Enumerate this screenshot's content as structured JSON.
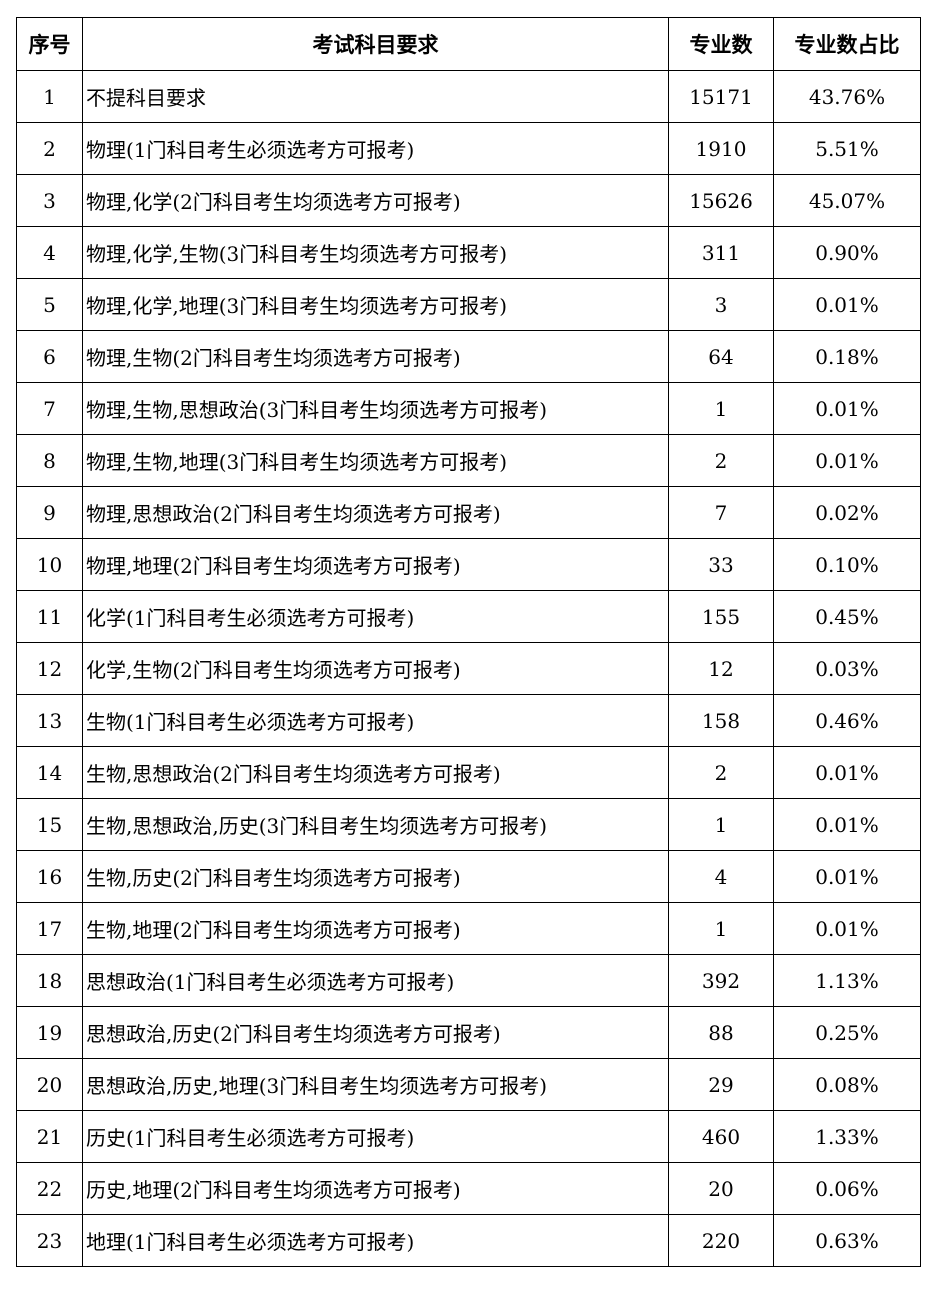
{
  "table": {
    "headers": [
      "序号",
      "考试科目要求",
      "专业数",
      "专业数占比"
    ],
    "rows": [
      [
        "1",
        "不提科目要求",
        "15171",
        "43.76%"
      ],
      [
        "2",
        "物理(1门科目考生必须选考方可报考)",
        "1910",
        "5.51%"
      ],
      [
        "3",
        "物理,化学(2门科目考生均须选考方可报考)",
        "15626",
        "45.07%"
      ],
      [
        "4",
        "物理,化学,生物(3门科目考生均须选考方可报考)",
        "311",
        "0.90%"
      ],
      [
        "5",
        "物理,化学,地理(3门科目考生均须选考方可报考)",
        "3",
        "0.01%"
      ],
      [
        "6",
        "物理,生物(2门科目考生均须选考方可报考)",
        "64",
        "0.18%"
      ],
      [
        "7",
        "物理,生物,思想政治(3门科目考生均须选考方可报考)",
        "1",
        "0.01%"
      ],
      [
        "8",
        "物理,生物,地理(3门科目考生均须选考方可报考)",
        "2",
        "0.01%"
      ],
      [
        "9",
        "物理,思想政治(2门科目考生均须选考方可报考)",
        "7",
        "0.02%"
      ],
      [
        "10",
        "物理,地理(2门科目考生均须选考方可报考)",
        "33",
        "0.10%"
      ],
      [
        "11",
        "化学(1门科目考生必须选考方可报考)",
        "155",
        "0.45%"
      ],
      [
        "12",
        "化学,生物(2门科目考生均须选考方可报考)",
        "12",
        "0.03%"
      ],
      [
        "13",
        "生物(1门科目考生必须选考方可报考)",
        "158",
        "0.46%"
      ],
      [
        "14",
        "生物,思想政治(2门科目考生均须选考方可报考)",
        "2",
        "0.01%"
      ],
      [
        "15",
        "生物,思想政治,历史(3门科目考生均须选考方可报考)",
        "1",
        "0.01%"
      ],
      [
        "16",
        "生物,历史(2门科目考生均须选考方可报考)",
        "4",
        "0.01%"
      ],
      [
        "17",
        "生物,地理(2门科目考生均须选考方可报考)",
        "1",
        "0.01%"
      ],
      [
        "18",
        "思想政治(1门科目考生必须选考方可报考)",
        "392",
        "1.13%"
      ],
      [
        "19",
        "思想政治,历史(2门科目考生均须选考方可报考)",
        "88",
        "0.25%"
      ],
      [
        "20",
        "思想政治,历史,地理(3门科目考生均须选考方可报考)",
        "29",
        "0.08%"
      ],
      [
        "21",
        "历史(1门科目考生必须选考方可报考)",
        "460",
        "1.33%"
      ],
      [
        "22",
        "历史,地理(2门科目考生均须选考方可报考)",
        "20",
        "0.06%"
      ],
      [
        "23",
        "地理(1门科目考生必须选考方可报考)",
        "220",
        "0.63%"
      ]
    ]
  }
}
